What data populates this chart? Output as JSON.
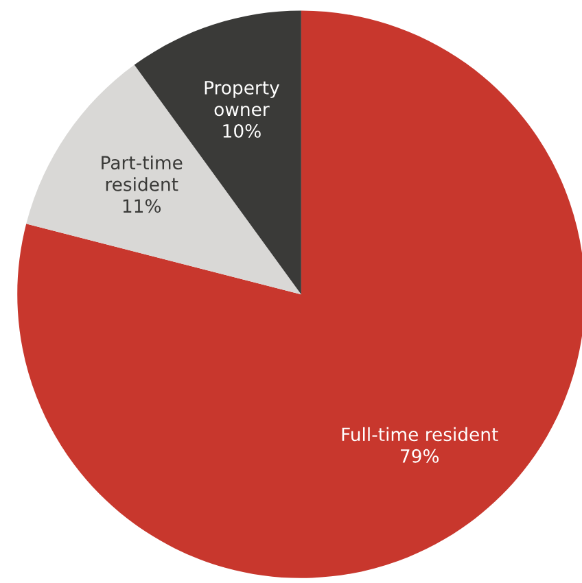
{
  "chart_data": {
    "type": "pie",
    "categories": [
      "Full-time resident",
      "Part-time\nresident",
      "Property\nowner"
    ],
    "values": [
      79,
      11,
      10
    ],
    "value_labels": [
      "79%",
      "11%",
      "10%"
    ],
    "colors": [
      "#c8372d",
      "#d9d8d6",
      "#3a3a38"
    ],
    "legend": false
  }
}
